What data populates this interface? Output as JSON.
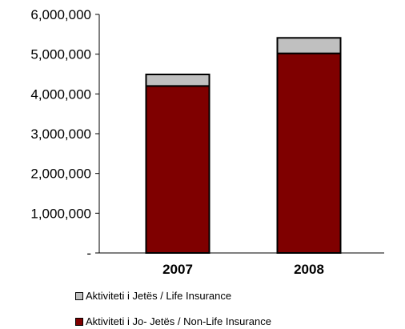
{
  "chart_data": {
    "type": "bar",
    "stacked": true,
    "categories": [
      "2007",
      "2008"
    ],
    "series": [
      {
        "name": "Aktiviteti i Jo- Jetës / Non-Life Insurance",
        "values": [
          4200000,
          5020000
        ],
        "color": "#7F0000"
      },
      {
        "name": "Aktiviteti i Jetës / Life Insurance",
        "values": [
          290000,
          390000
        ],
        "color": "#C0C0C0"
      }
    ],
    "ylim": [
      0,
      6000000
    ],
    "yticks": [
      0,
      1000000,
      2000000,
      3000000,
      4000000,
      5000000,
      6000000
    ],
    "ytick_labels": [
      "-",
      "1,000,000",
      "2,000,000",
      "3,000,000",
      "4,000,000",
      "5,000,000",
      "6,000,000"
    ],
    "title": "",
    "xlabel": "",
    "ylabel": "",
    "grid": false,
    "legend_position": "bottom-left"
  },
  "legend": {
    "items": [
      {
        "label": "Aktiviteti i Jetës / Life Insurance",
        "color": "#C0C0C0"
      },
      {
        "label": "Aktiviteti i Jo- Jetës / Non-Life Insurance",
        "color": "#7F0000"
      }
    ]
  }
}
